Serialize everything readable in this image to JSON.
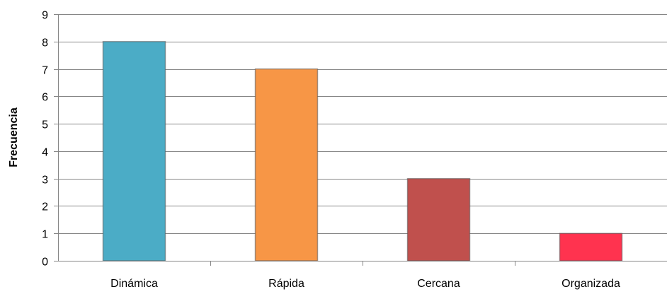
{
  "chart_data": {
    "type": "bar",
    "title": "",
    "xlabel": "",
    "ylabel": "Frecuencia",
    "ylim": [
      0,
      9
    ],
    "y_ticks": [
      0,
      1,
      2,
      3,
      4,
      5,
      6,
      7,
      8,
      9
    ],
    "categories": [
      "Dinámica",
      "Rápida",
      "Cercana",
      "Organizada"
    ],
    "values": [
      8,
      7,
      3,
      1
    ],
    "colors": [
      "#4bacc6",
      "#f79646",
      "#c0504d",
      "#ff334f"
    ],
    "grid": true,
    "legend": "none"
  }
}
